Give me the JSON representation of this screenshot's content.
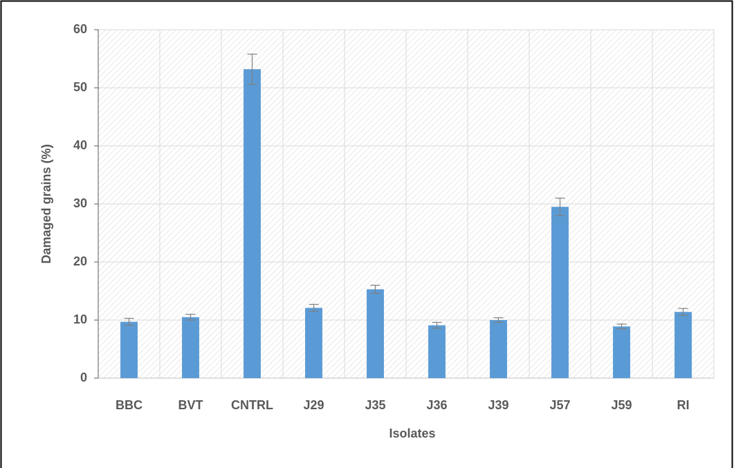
{
  "chart_data": {
    "type": "bar",
    "x_label": "Isolates",
    "y_label": "Damaged grains (%)",
    "categories": [
      "BBC",
      "BVT",
      "CNTRL",
      "J29",
      "J35",
      "J36",
      "J39",
      "J57",
      "J59",
      "RI"
    ],
    "values": [
      9.7,
      10.5,
      53.2,
      12.1,
      15.3,
      9.1,
      10.0,
      29.5,
      8.9,
      11.4
    ],
    "errors": [
      0.6,
      0.5,
      2.6,
      0.6,
      0.7,
      0.5,
      0.4,
      1.5,
      0.4,
      0.6
    ],
    "color": "#5b9bd5",
    "ylim": [
      0,
      60
    ],
    "yticks": [
      0,
      10,
      20,
      30,
      40,
      50,
      60
    ],
    "grid": true
  }
}
